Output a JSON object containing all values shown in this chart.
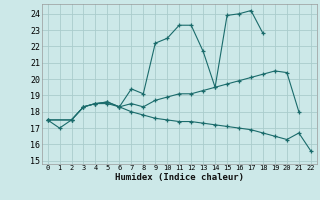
{
  "xlabel": "Humidex (Indice chaleur)",
  "xlim": [
    -0.5,
    22.5
  ],
  "ylim": [
    14.8,
    24.6
  ],
  "yticks": [
    15,
    16,
    17,
    18,
    19,
    20,
    21,
    22,
    23,
    24
  ],
  "xticks": [
    0,
    1,
    2,
    3,
    4,
    5,
    6,
    7,
    8,
    9,
    10,
    11,
    12,
    13,
    14,
    15,
    16,
    17,
    18,
    19,
    20,
    21,
    22
  ],
  "bg_color": "#cce8e8",
  "grid_color": "#aacccc",
  "line_color": "#1a6b6b",
  "series": [
    {
      "x": [
        0,
        1,
        2,
        3,
        4,
        5,
        6,
        7,
        8,
        9,
        10,
        11,
        12,
        13,
        14,
        15,
        16,
        17,
        18
      ],
      "y": [
        17.5,
        17.0,
        17.5,
        18.3,
        18.5,
        18.6,
        18.3,
        19.4,
        19.1,
        22.2,
        22.5,
        23.3,
        23.3,
        21.7,
        19.5,
        23.9,
        24.0,
        24.2,
        22.8
      ]
    },
    {
      "x": [
        0,
        2,
        3,
        4,
        5,
        6,
        7,
        8,
        9,
        10,
        11,
        12,
        13,
        14,
        15,
        16,
        17,
        18,
        19,
        20,
        21
      ],
      "y": [
        17.5,
        17.5,
        18.3,
        18.5,
        18.6,
        18.3,
        18.5,
        18.3,
        18.7,
        18.9,
        19.1,
        19.1,
        19.3,
        19.5,
        19.7,
        19.9,
        20.1,
        20.3,
        20.5,
        20.4,
        18.0
      ]
    },
    {
      "x": [
        0,
        2,
        3,
        4,
        5,
        6,
        7,
        8,
        9,
        10,
        11,
        12,
        13,
        14,
        15,
        16,
        17,
        18,
        19,
        20,
        21,
        22
      ],
      "y": [
        17.5,
        17.5,
        18.3,
        18.5,
        18.5,
        18.3,
        18.0,
        17.8,
        17.6,
        17.5,
        17.4,
        17.4,
        17.3,
        17.2,
        17.1,
        17.0,
        16.9,
        16.7,
        16.5,
        16.3,
        16.7,
        15.6
      ]
    }
  ]
}
